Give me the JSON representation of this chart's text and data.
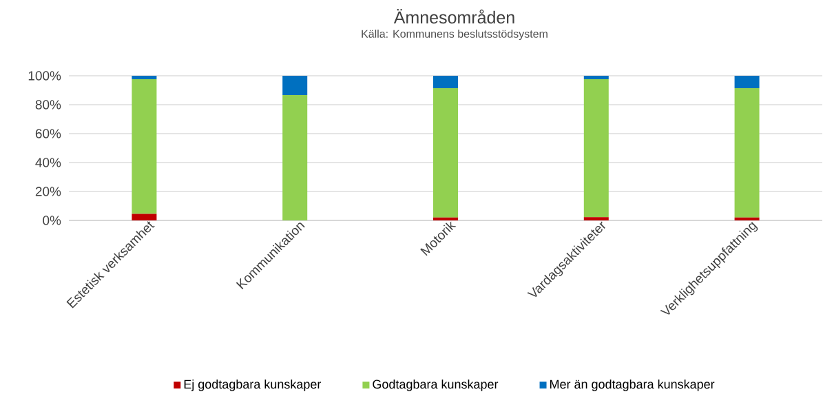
{
  "chart_data": {
    "type": "bar",
    "stacked": true,
    "title": "Ämnesområden",
    "subtitle": "Källa: Kommunens beslutsstödsystem",
    "categories": [
      "Estetisk verksamhet",
      "Kommunikation",
      "Motorik",
      "Vardagsaktiviteter",
      "Verklighetsuppfattning"
    ],
    "series": [
      {
        "name": "Ej godtagbara kunskaper",
        "color": "#c00000",
        "values": [
          4.5,
          0,
          2,
          2.2,
          2
        ]
      },
      {
        "name": "Godtagbara kunskaper",
        "color": "#92d050",
        "values": [
          93.1,
          86.7,
          89.4,
          95.4,
          89.4
        ]
      },
      {
        "name": "Mer än godtagbara kunskaper",
        "color": "#0070c0",
        "values": [
          2.4,
          13.3,
          8.6,
          2.4,
          8.6
        ]
      }
    ],
    "ylim": [
      0,
      100
    ],
    "yticks": [
      {
        "value": 0,
        "label": "0%"
      },
      {
        "value": 20,
        "label": "20%"
      },
      {
        "value": 40,
        "label": "40%"
      },
      {
        "value": 60,
        "label": "60%"
      },
      {
        "value": 80,
        "label": "80%"
      },
      {
        "value": 100,
        "label": "100%"
      }
    ],
    "grid": "y",
    "legend": "bottom"
  }
}
